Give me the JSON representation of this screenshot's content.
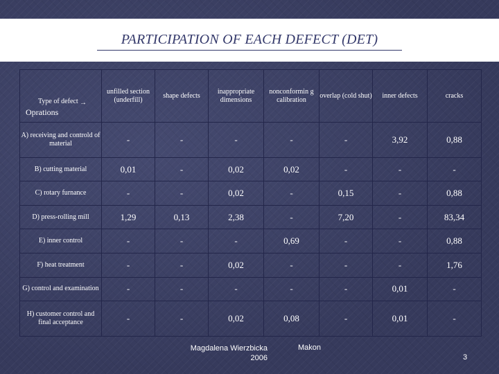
{
  "title": "PARTICIPATION OF EACH DEFECT (DET)",
  "header": {
    "type_of_defect": "Type of defect",
    "operations": "Oprations",
    "columns": [
      "unfilled section (underfill)",
      "shape defects",
      "inappropriate dimensions",
      "nonconformin g calibration",
      "overlap (cold shut)",
      "inner defects",
      "cracks"
    ]
  },
  "rows": [
    {
      "op": "A) receiving and controld of material",
      "values": [
        "-",
        "-",
        "-",
        "-",
        "-",
        "3,92",
        "0,88"
      ]
    },
    {
      "op": "B) cutting material",
      "values": [
        "0,01",
        "-",
        "0,02",
        "0,02",
        "-",
        "-",
        "-"
      ]
    },
    {
      "op": "C) rotary furnance",
      "values": [
        "-",
        "-",
        "0,02",
        "-",
        "0,15",
        "-",
        "0,88"
      ]
    },
    {
      "op": "D) press-rolling mill",
      "values": [
        "1,29",
        "0,13",
        "2,38",
        "-",
        "7,20",
        "-",
        "83,34"
      ]
    },
    {
      "op": "E) inner control",
      "values": [
        "-",
        "-",
        "-",
        "0,69",
        "-",
        "-",
        "0,88"
      ]
    },
    {
      "op": "F) heat treatment",
      "values": [
        "-",
        "-",
        "0,02",
        "-",
        "-",
        "-",
        "1,76"
      ]
    },
    {
      "op": "G) control and examination",
      "values": [
        "-",
        "-",
        "-",
        "-",
        "-",
        "0,01",
        "-"
      ]
    },
    {
      "op": "H) customer control and final acceptance",
      "values": [
        "-",
        "-",
        "0,02",
        "0,08",
        "-",
        "0,01",
        "-"
      ]
    }
  ],
  "footer": {
    "author": "Magdalena Wierzbicka",
    "year": "2006",
    "org": "Makon",
    "page": "3"
  }
}
